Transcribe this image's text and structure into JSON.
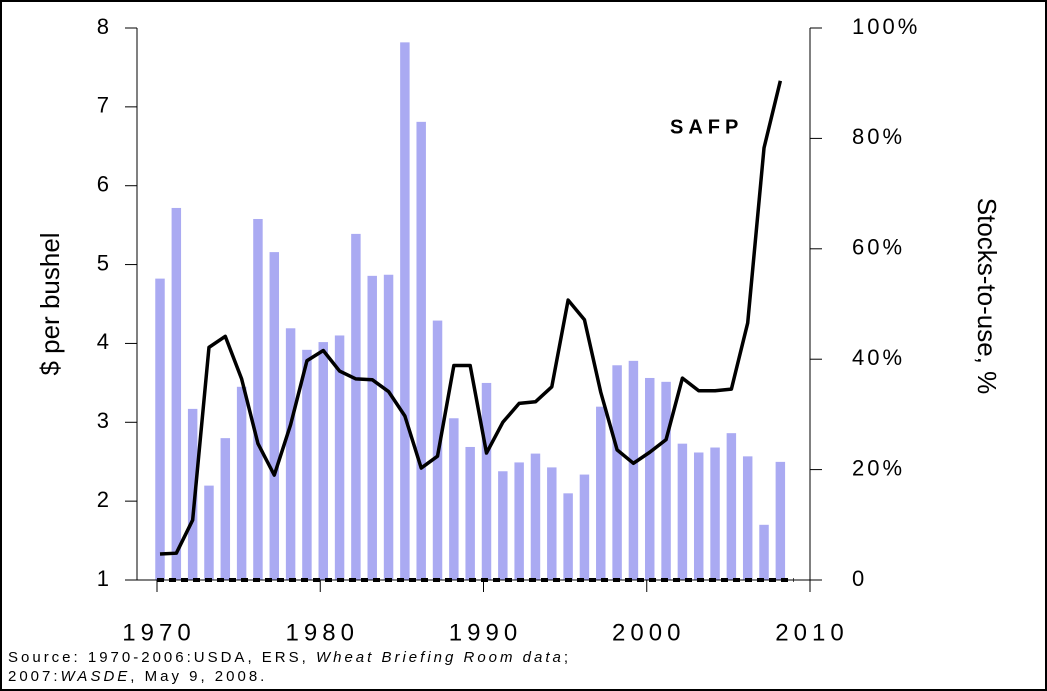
{
  "chart_data": {
    "type": "bar",
    "x": [
      1970,
      1971,
      1972,
      1973,
      1974,
      1975,
      1976,
      1977,
      1978,
      1979,
      1980,
      1981,
      1982,
      1983,
      1984,
      1985,
      1986,
      1987,
      1988,
      1989,
      1990,
      1991,
      1992,
      1993,
      1994,
      1995,
      1996,
      1997,
      1998,
      1999,
      2000,
      2001,
      2002,
      2003,
      2004,
      2005,
      2006,
      2007,
      2008
    ],
    "series": [
      {
        "type": "bar",
        "axis": "y2",
        "color": "#aaaaf2",
        "values": [
          54.6,
          67.4,
          31.0,
          17.1,
          25.7,
          35.0,
          65.4,
          59.4,
          45.6,
          41.7,
          43.1,
          44.3,
          62.7,
          55.1,
          55.3,
          97.4,
          83.0,
          47.0,
          29.3,
          24.1,
          35.7,
          19.7,
          21.3,
          22.9,
          20.4,
          15.7,
          19.1,
          31.4,
          38.9,
          39.7,
          36.6,
          35.9,
          24.7,
          23.1,
          24.0,
          26.6,
          22.4,
          10.0,
          21.4
        ]
      },
      {
        "type": "line",
        "color": "#000000",
        "values": [
          1.33,
          1.34,
          1.76,
          3.95,
          4.09,
          3.55,
          2.73,
          2.33,
          2.97,
          3.78,
          3.91,
          3.65,
          3.55,
          3.54,
          3.39,
          3.08,
          2.42,
          2.57,
          3.72,
          3.72,
          2.61,
          3.0,
          3.24,
          3.26,
          3.45,
          4.55,
          4.3,
          3.38,
          2.65,
          2.48,
          2.62,
          2.78,
          3.56,
          3.4,
          3.4,
          3.42,
          4.26,
          6.48,
          7.33
        ]
      }
    ],
    "annotation": "SAFP",
    "y_label": "$ per bushel",
    "y2_label": "Stocks-to-use, %",
    "xlim": [
      1970,
      2010
    ],
    "xticks": [
      1970,
      1980,
      1990,
      2000,
      2010
    ],
    "ylim": [
      1,
      8
    ],
    "yticks": [
      1,
      2,
      3,
      4,
      5,
      6,
      7,
      8
    ],
    "y2lim": [
      0,
      100
    ],
    "y2ticks": [
      {
        "value": 0,
        "label": "0"
      },
      {
        "value": 20,
        "label": "20%"
      },
      {
        "value": 40,
        "label": "40%"
      },
      {
        "value": 60,
        "label": "60%"
      },
      {
        "value": 80,
        "label": "80%"
      },
      {
        "value": 100,
        "label": "100%"
      }
    ],
    "source": [
      [
        "Source: 1970-2006:USDA, ERS, ",
        "Wheat Briefing Room data",
        ";"
      ],
      [
        "2007:",
        "WASDE",
        ", May 9, 2008."
      ]
    ]
  }
}
